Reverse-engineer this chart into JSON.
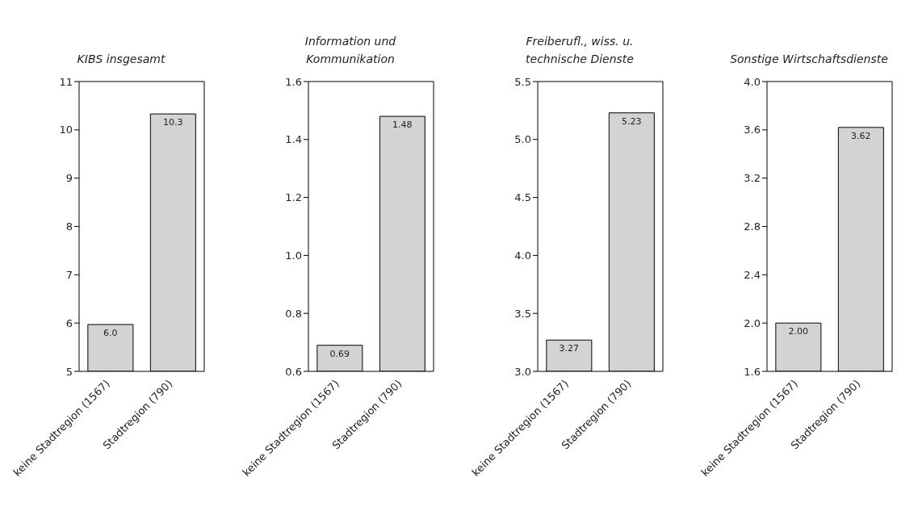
{
  "chart_data": [
    {
      "type": "bar",
      "title": "KIBS insgesamt",
      "categories": [
        "keine Stadtregion (1567)",
        "Stadtregion (790)"
      ],
      "values": [
        5.97,
        10.33
      ],
      "value_labels": [
        "6.0",
        "10.3"
      ],
      "color": "#d3d3d3",
      "ylim": [
        5,
        11
      ],
      "yticks": [
        5,
        6,
        7,
        8,
        9,
        10,
        11
      ]
    },
    {
      "type": "bar",
      "title": "Information und Kommunikation",
      "categories": [
        "keine Stadtregion (1567)",
        "Stadtregion (790)"
      ],
      "values": [
        0.69,
        1.48
      ],
      "value_labels": [
        "0.69",
        "1.48"
      ],
      "color": "#d3d3d3",
      "ylim": [
        0.6,
        1.6
      ],
      "yticks": [
        0.6,
        0.8,
        {
          "value": 1,
          "label": "1.0"
        },
        1.2,
        1.4,
        1.6
      ]
    },
    {
      "type": "bar",
      "title": "Freiberufl., wiss. u. technische Dienste",
      "categories": [
        "keine Stadtregion (1567)",
        "Stadtregion (790)"
      ],
      "values": [
        3.27,
        5.23
      ],
      "value_labels": [
        "3.27",
        "5.23"
      ],
      "color": "#d3d3d3",
      "ylim": [
        3,
        5.5
      ],
      "yticks": [
        {
          "value": 3,
          "label": "3.0"
        },
        3.5,
        {
          "value": 4,
          "label": "4.0"
        },
        4.5,
        {
          "value": 5,
          "label": "5.0"
        },
        5.5
      ]
    },
    {
      "type": "bar",
      "title": "Sonstige Wirtschaftsdienste",
      "categories": [
        "keine Stadtregion (1567)",
        "Stadtregion (790)"
      ],
      "values": [
        2.0,
        3.62
      ],
      "value_labels": [
        "2.00",
        "3.62"
      ],
      "color": "#d3d3d3",
      "ylim": [
        1.6,
        4.0
      ],
      "yticks": [
        1.6,
        {
          "value": 2,
          "label": "2.0"
        },
        2.4,
        2.8,
        3.2,
        3.6,
        {
          "value": 4,
          "label": "4.0"
        }
      ]
    }
  ]
}
